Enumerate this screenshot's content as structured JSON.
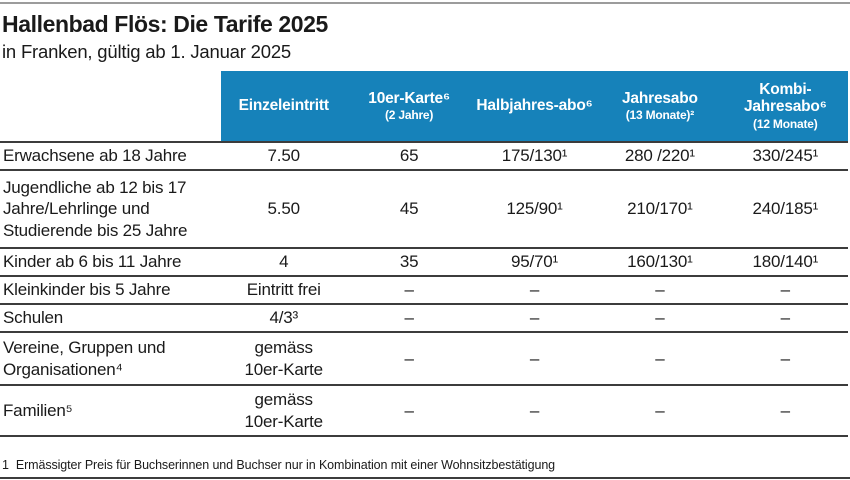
{
  "page": {
    "title": "Hallenbad Flös: Die Tarife 2025",
    "subtitle": "in Franken, gültig ab 1. Januar 2025"
  },
  "colors": {
    "header_bg": "#1682ba",
    "header_text": "#ffffff",
    "rule_dark": "#3c3c3c",
    "rule_gray": "#9c9c9c",
    "text": "#1a1a1a"
  },
  "table": {
    "columns": [
      {
        "title": "Einzeleintritt",
        "subtitle": ""
      },
      {
        "title": "10er-Karte⁶",
        "subtitle": "(2 Jahre)"
      },
      {
        "title": "Halbjahres-abo⁶",
        "subtitle": ""
      },
      {
        "title": "Jahresabo",
        "subtitle": "(13 Monate)²"
      },
      {
        "title": "Kombi-Jahresabo⁶",
        "subtitle": "(12 Monate)"
      }
    ],
    "rows": [
      {
        "label": "Erwachsene ab 18 Jahre",
        "values": [
          "7.50",
          "65",
          "175/130¹",
          "280 /220¹",
          "330/245¹"
        ]
      },
      {
        "label": "Jugendliche ab 12 bis 17 Jahre/Lehrlinge und Studierende bis 25 Jahre",
        "values": [
          "5.50",
          "45",
          "125/90¹",
          "210/170¹",
          "240/185¹"
        ]
      },
      {
        "label": "Kinder ab 6 bis 11 Jahre",
        "values": [
          "4",
          "35",
          "95/70¹",
          "160/130¹",
          "180/140¹"
        ]
      },
      {
        "label": "Kleinkinder bis 5 Jahre",
        "values": [
          "Eintritt frei",
          "–",
          "–",
          "–",
          "–"
        ]
      },
      {
        "label": "Schulen",
        "values": [
          "4/3³",
          "–",
          "–",
          "–",
          "–"
        ]
      },
      {
        "label": "Vereine, Gruppen und Organisationen⁴",
        "values": [
          "gemäss 10er-Karte",
          "–",
          "–",
          "–",
          "–"
        ]
      },
      {
        "label": "Familien⁵",
        "values": [
          "gemäss 10er-Karte",
          "–",
          "–",
          "–",
          "–"
        ]
      }
    ]
  },
  "footnote": {
    "marker": "1",
    "text": "Ermässigter Preis für Buchserinnen und Buchser nur in Kombination mit einer Wohnsitzbestätigung"
  }
}
